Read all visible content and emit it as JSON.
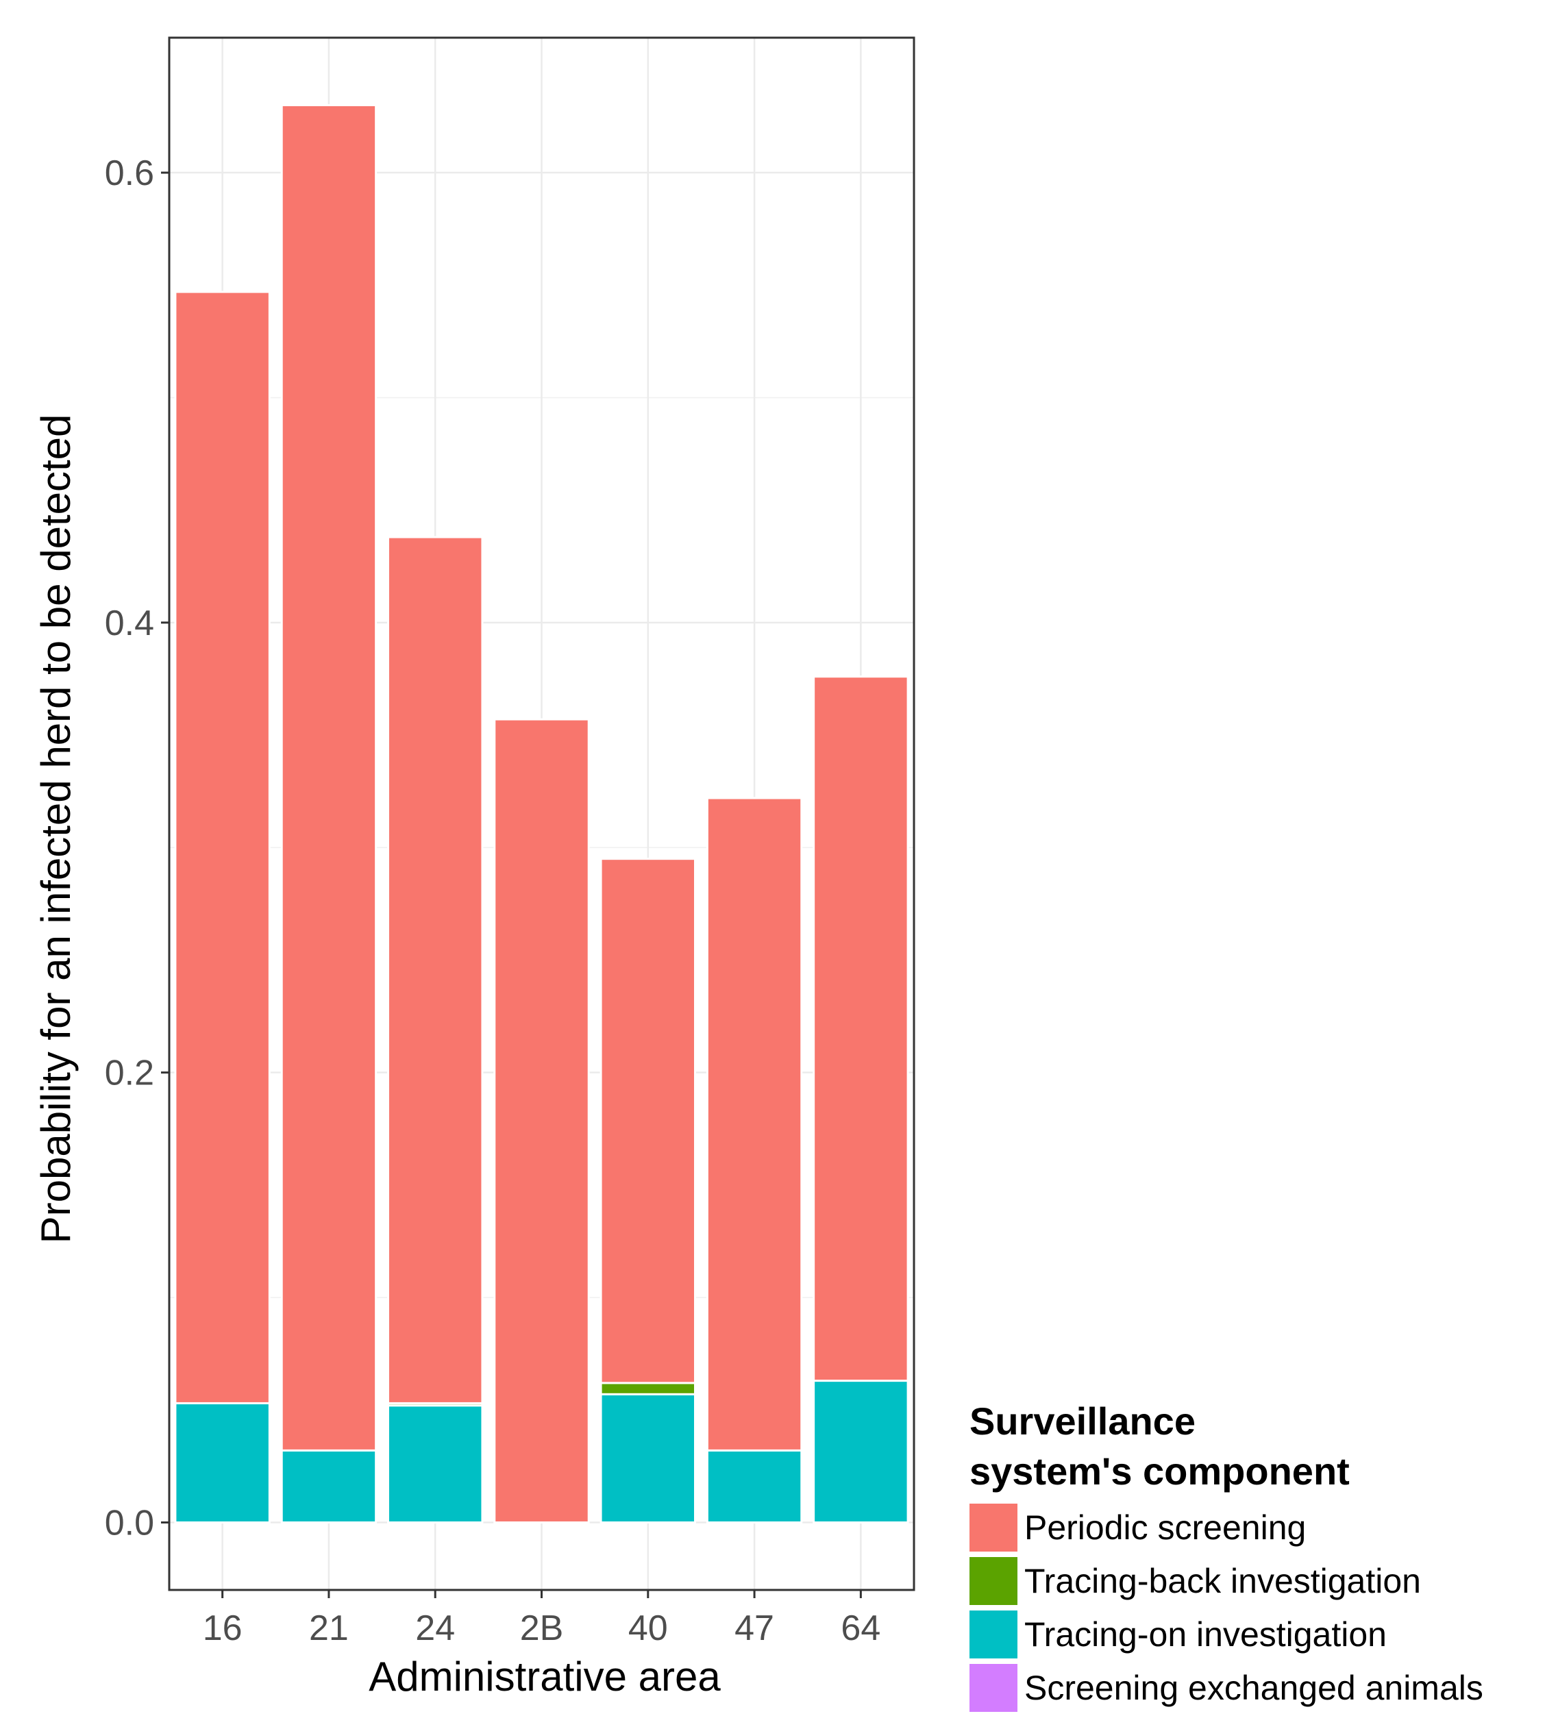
{
  "chart_data": {
    "type": "bar",
    "stacked": true,
    "title": "",
    "xlabel": "Administrative area",
    "ylabel": "Probability for an infected herd to be detected",
    "categories": [
      "16",
      "21",
      "24",
      "2B",
      "40",
      "47",
      "64"
    ],
    "ylim": [
      -0.03,
      0.66
    ],
    "yticks": [
      0.0,
      0.2,
      0.4,
      0.6
    ],
    "ytick_labels": [
      "0.0",
      "0.2",
      "0.4",
      "0.6"
    ],
    "grid": true,
    "series": [
      {
        "name": "Screening exchanged animals",
        "color": "#d37dff",
        "values": [
          0,
          0,
          0,
          0,
          0,
          0,
          0
        ]
      },
      {
        "name": "Tracing-on investigation",
        "color": "#00bfc4",
        "values": [
          0.053,
          0.032,
          0.052,
          0,
          0.057,
          0.032,
          0.063
        ]
      },
      {
        "name": "Tracing-back investigation",
        "color": "#5ba300",
        "values": [
          0,
          0,
          0.001,
          0,
          0.005,
          0,
          0
        ]
      },
      {
        "name": "Periodic screening",
        "color": "#f8766d",
        "values": [
          0.494,
          0.598,
          0.385,
          0.357,
          0.233,
          0.29,
          0.313
        ]
      }
    ],
    "legend": {
      "position": "bottom-right",
      "title_line1": "Surveillance",
      "title_line2": "system's component",
      "entries": [
        {
          "label": "Periodic screening",
          "color": "#f8766d"
        },
        {
          "label": "Tracing-back investigation",
          "color": "#5ba300"
        },
        {
          "label": "Tracing-on investigation",
          "color": "#00bfc4"
        },
        {
          "label": "Screening exchanged animals",
          "color": "#d37dff"
        }
      ]
    }
  }
}
